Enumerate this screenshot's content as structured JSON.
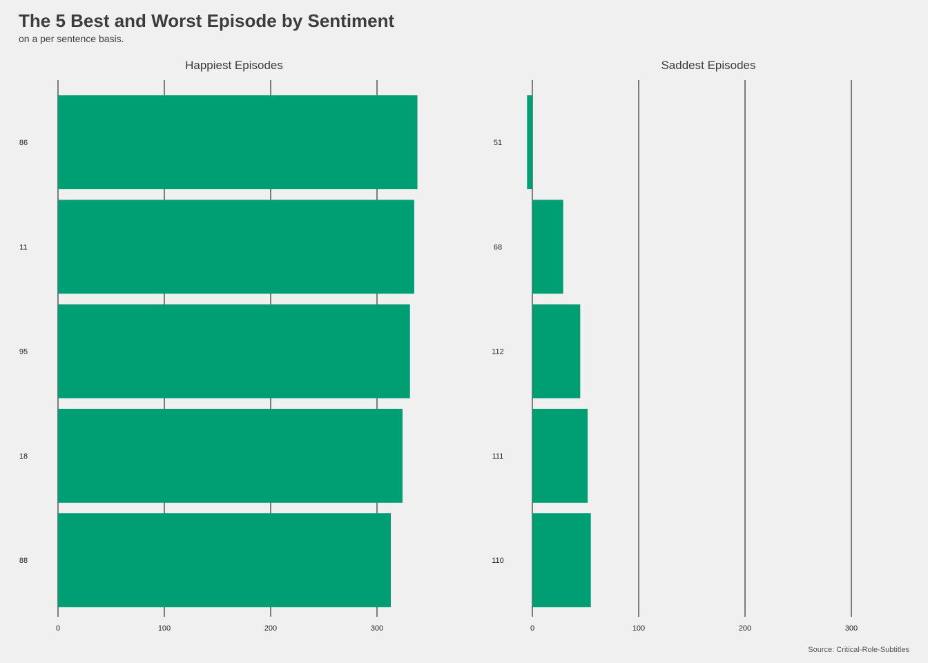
{
  "title": "The 5 Best and Worst Episode by Sentiment",
  "subtitle": "on a per sentence basis.",
  "caption": "Source: Critical-Role-Subtitles",
  "colors": {
    "background": "#f0f0f0",
    "bar": "#009e73",
    "gridline": "#555555",
    "text": "#3c3c3c"
  },
  "chart_data": [
    {
      "type": "bar",
      "orientation": "horizontal",
      "title": "Happiest Episodes",
      "categories": [
        "86",
        "11",
        "95",
        "18",
        "88"
      ],
      "values": [
        338,
        335,
        331,
        324,
        313
      ],
      "xticks": [
        0,
        100,
        200,
        300
      ],
      "xlim": [
        0,
        360
      ],
      "grid": "vertical"
    },
    {
      "type": "bar",
      "orientation": "horizontal",
      "title": "Saddest Episodes",
      "categories": [
        "51",
        "68",
        "112",
        "111",
        "110"
      ],
      "values": [
        -5,
        29,
        45,
        52,
        55
      ],
      "xticks": [
        0,
        100,
        200,
        300
      ],
      "xlim": [
        0,
        360
      ],
      "grid": "vertical"
    }
  ]
}
